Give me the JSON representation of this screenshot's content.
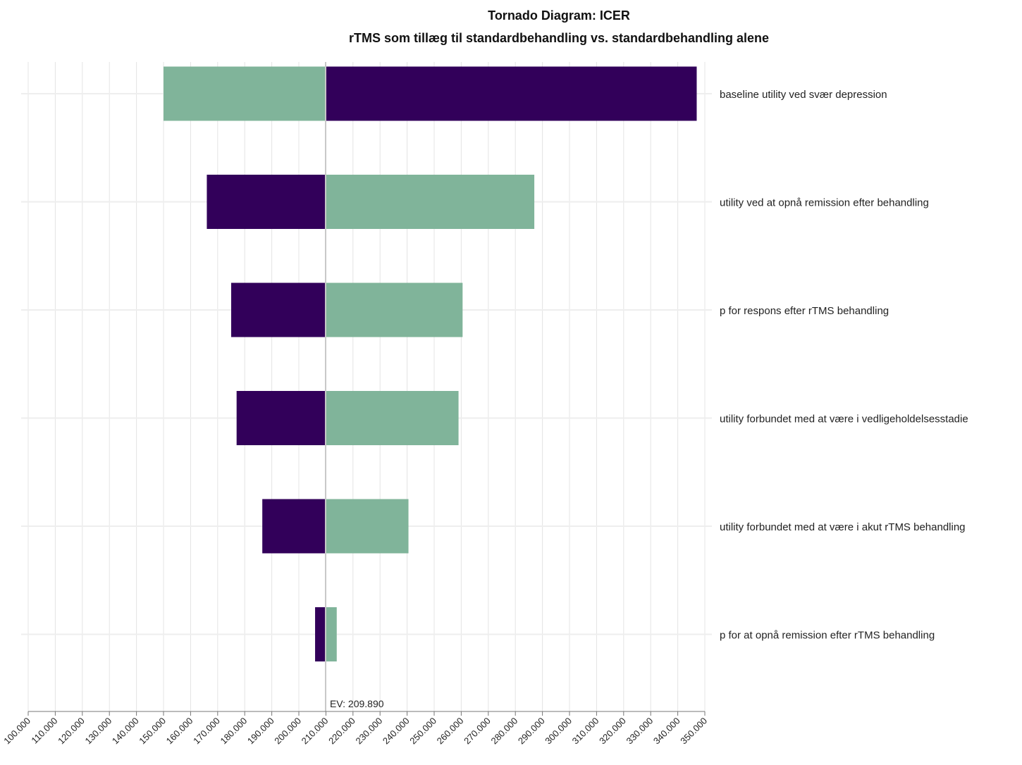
{
  "chart_data": {
    "type": "bar",
    "orientation": "horizontal",
    "title": "Tornado Diagram: ICER",
    "subtitle": "rTMS som tillæg til standardbehandling vs. standardbehandling alene",
    "xlim": [
      100000,
      350000
    ],
    "x_ticks": [
      100000,
      110000,
      120000,
      130000,
      140000,
      150000,
      160000,
      170000,
      180000,
      190000,
      200000,
      210000,
      220000,
      230000,
      240000,
      250000,
      260000,
      270000,
      280000,
      290000,
      300000,
      310000,
      320000,
      330000,
      340000,
      350000
    ],
    "x_tick_labels": [
      "100.000",
      "110.000",
      "120.000",
      "130.000",
      "140.000",
      "150.000",
      "160.000",
      "170.000",
      "180.000",
      "190.000",
      "200.000",
      "210.000",
      "220.000",
      "230.000",
      "240.000",
      "250.000",
      "260.000",
      "270.000",
      "280.000",
      "290.000",
      "300.000",
      "310.000",
      "320.000",
      "330.000",
      "340.000",
      "350.000"
    ],
    "grid": true,
    "ev": 209890,
    "ev_label": "EV: 209.890",
    "colors": {
      "purple": "#32005a",
      "green": "#80b49a",
      "ev_line": "#c8c8c8",
      "grid": "#e4e4e4"
    },
    "bars": [
      {
        "label": "baseline utility ved svær depression",
        "low": 150000,
        "high": 347000,
        "left_color": "green",
        "right_color": "purple"
      },
      {
        "label": "utility ved at opnå remission efter behandling",
        "low": 166000,
        "high": 287000,
        "left_color": "purple",
        "right_color": "green"
      },
      {
        "label": "p for respons efter rTMS behandling",
        "low": 175000,
        "high": 260500,
        "left_color": "purple",
        "right_color": "green"
      },
      {
        "label": "utility forbundet med at være i vedligeholdelsesstadie",
        "low": 177000,
        "high": 259000,
        "left_color": "purple",
        "right_color": "green"
      },
      {
        "label": "utility forbundet med at være i akut rTMS behandling",
        "low": 186500,
        "high": 240500,
        "left_color": "purple",
        "right_color": "green"
      },
      {
        "label": "p for at opnå remission efter rTMS behandling",
        "low": 206000,
        "high": 214000,
        "left_color": "purple",
        "right_color": "green"
      }
    ]
  }
}
